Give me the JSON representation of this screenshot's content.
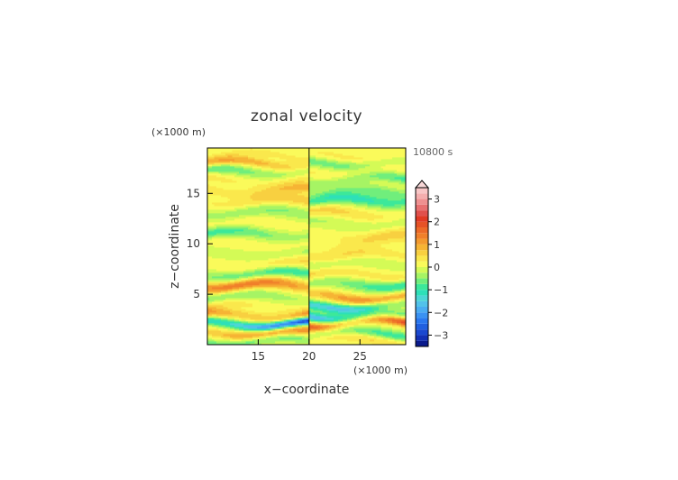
{
  "chart_data": {
    "type": "heatmap",
    "title": "zonal velocity",
    "xlabel": "x−coordinate",
    "ylabel": "z−coordinate",
    "x_unit": "(×1000 m)",
    "y_unit": "(×1000 m)",
    "time_label": "10800 s",
    "xlim": [
      10,
      29.5
    ],
    "ylim": [
      0,
      19.5
    ],
    "x_ticks": [
      15,
      20,
      25
    ],
    "x_tick_labels": [
      "15",
      "20",
      "25"
    ],
    "y_ticks": [
      5,
      10,
      15
    ],
    "y_tick_labels": [
      "5",
      "10",
      "15"
    ],
    "colorbar": {
      "levels": [
        -3.5,
        -3.25,
        -3,
        -2.75,
        -2.5,
        -2.25,
        -2,
        -1.75,
        -1.5,
        -1.25,
        -1,
        -0.75,
        -0.5,
        -0.25,
        0,
        0.25,
        0.5,
        0.75,
        1,
        1.25,
        1.5,
        1.75,
        2,
        2.25,
        2.5,
        2.75,
        3,
        3.25,
        3.5
      ],
      "tick_values": [
        -3,
        -2,
        -1,
        0,
        1,
        2,
        3
      ],
      "tick_labels": [
        "−3",
        "−2",
        "−1",
        "0",
        "1",
        "2",
        "3"
      ],
      "colors": [
        "#0a1a8c",
        "#1230b4",
        "#1a48d0",
        "#2060e0",
        "#2a78f0",
        "#3a92f2",
        "#4aacf2",
        "#52c2ea",
        "#4cd6d6",
        "#2ee0b8",
        "#3ce89a",
        "#70ee7c",
        "#a6f464",
        "#d4fa56",
        "#fafa5a",
        "#fae84c",
        "#f8d040",
        "#f6b434",
        "#f39a2e",
        "#f0802a",
        "#ec6a28",
        "#e65226",
        "#e03a24",
        "#e0504c",
        "#e87070",
        "#ef9090",
        "#f4aeae",
        "#f8c6c6"
      ],
      "extend": "max"
    },
    "bands": [
      {
        "z": 18.8,
        "w": 0.5,
        "left": 0.3,
        "right": 0.3
      },
      {
        "z": 18.0,
        "w": 0.45,
        "left": 0.9,
        "right": -0.6
      },
      {
        "z": 17.2,
        "w": 0.5,
        "left": -0.8,
        "right": 0.3
      },
      {
        "z": 16.3,
        "w": 0.5,
        "left": 0.5,
        "right": -0.9
      },
      {
        "z": 15.3,
        "w": 0.55,
        "left": 0.9,
        "right": -0.5
      },
      {
        "z": 14.2,
        "w": 0.6,
        "left": 0.6,
        "right": -1.0
      },
      {
        "z": 13.1,
        "w": 0.6,
        "left": -0.5,
        "right": 0.6
      },
      {
        "z": 12.0,
        "w": 0.6,
        "left": 0.2,
        "right": -0.4
      },
      {
        "z": 11.0,
        "w": 0.55,
        "left": -0.9,
        "right": 0.5
      },
      {
        "z": 10.0,
        "w": 0.6,
        "left": 0.3,
        "right": 0.3
      },
      {
        "z": 9.0,
        "w": 0.55,
        "left": -0.4,
        "right": 0.5
      },
      {
        "z": 8.0,
        "w": 0.6,
        "left": 0.5,
        "right": -0.3
      },
      {
        "z": 7.0,
        "w": 0.55,
        "left": -0.9,
        "right": 0.9
      },
      {
        "z": 5.9,
        "w": 0.6,
        "left": 1.4,
        "right": -1.1
      },
      {
        "z": 4.8,
        "w": 0.55,
        "left": -0.6,
        "right": 1.2
      },
      {
        "z": 3.8,
        "w": 0.5,
        "left": 0.5,
        "right": -1.4
      },
      {
        "z": 2.9,
        "w": 0.5,
        "left": 1.7,
        "right": -1.6
      },
      {
        "z": 2.1,
        "w": 0.45,
        "left": -3.0,
        "right": 2.6
      },
      {
        "z": 1.2,
        "w": 0.5,
        "left": 1.2,
        "right": -0.9
      },
      {
        "z": 0.4,
        "w": 0.45,
        "left": -0.7,
        "right": 0.5
      }
    ]
  }
}
